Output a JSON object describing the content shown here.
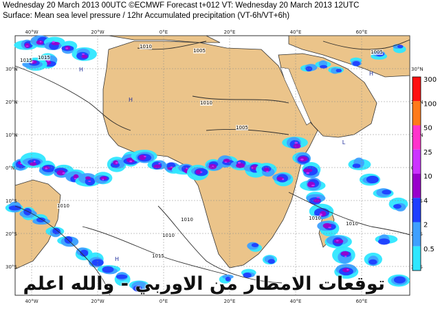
{
  "header": {
    "line1": "Wednesday 20 March 2013 00UTC ©ECMWF Forecast t+012 VT: Wednesday 20 March 2013 12UTC",
    "line2": "Surface: Mean sea level pressure / 12hr Accumulated precipitation (VT-6h/VT+6h)"
  },
  "axes": {
    "lon_top": [
      "40°W",
      "20°W",
      "0°E",
      "20°E",
      "40°E",
      "60°E"
    ],
    "lon_bottom": [
      "40°W",
      "20°W",
      "0°E",
      "20°E",
      "40°E",
      "60°E"
    ],
    "lat_left": [
      "30°N",
      "20°N",
      "10°N",
      "0°N",
      "10°S",
      "20°S",
      "30°S"
    ],
    "lat_right": [
      "30°N",
      "20°N",
      "10°N",
      "0°N",
      "10°S",
      "20°S",
      "30°S"
    ]
  },
  "isobars": [
    "1015",
    "1010",
    "1005",
    "1010",
    "1005",
    "1010",
    "1010",
    "1010",
    "1010",
    "1015",
    "1015",
    "1010",
    "1005"
  ],
  "pressure_centers": [
    "H",
    "H",
    "L",
    "H",
    "H"
  ],
  "legend": {
    "levels": [
      {
        "label": "300",
        "color": "#ff1010"
      },
      {
        "label": "100",
        "color": "#ff7a1a"
      },
      {
        "label": "50",
        "color": "#ff33cc"
      },
      {
        "label": "25",
        "color": "#cc33ff"
      },
      {
        "label": "10",
        "color": "#9900cc"
      },
      {
        "label": "4",
        "color": "#1f3fff"
      },
      {
        "label": "2",
        "color": "#3fa0ff"
      },
      {
        "label": "0.5",
        "color": "#2fe7ff"
      }
    ]
  },
  "colors": {
    "land": "#ebc48a",
    "ocean": "#ffffff",
    "coast": "#333333",
    "grid": "#8a8a8a",
    "isobar": "#2b2b2b"
  },
  "overlay_text": "توقعات الامطار من الاوربي - والله اعلم"
}
